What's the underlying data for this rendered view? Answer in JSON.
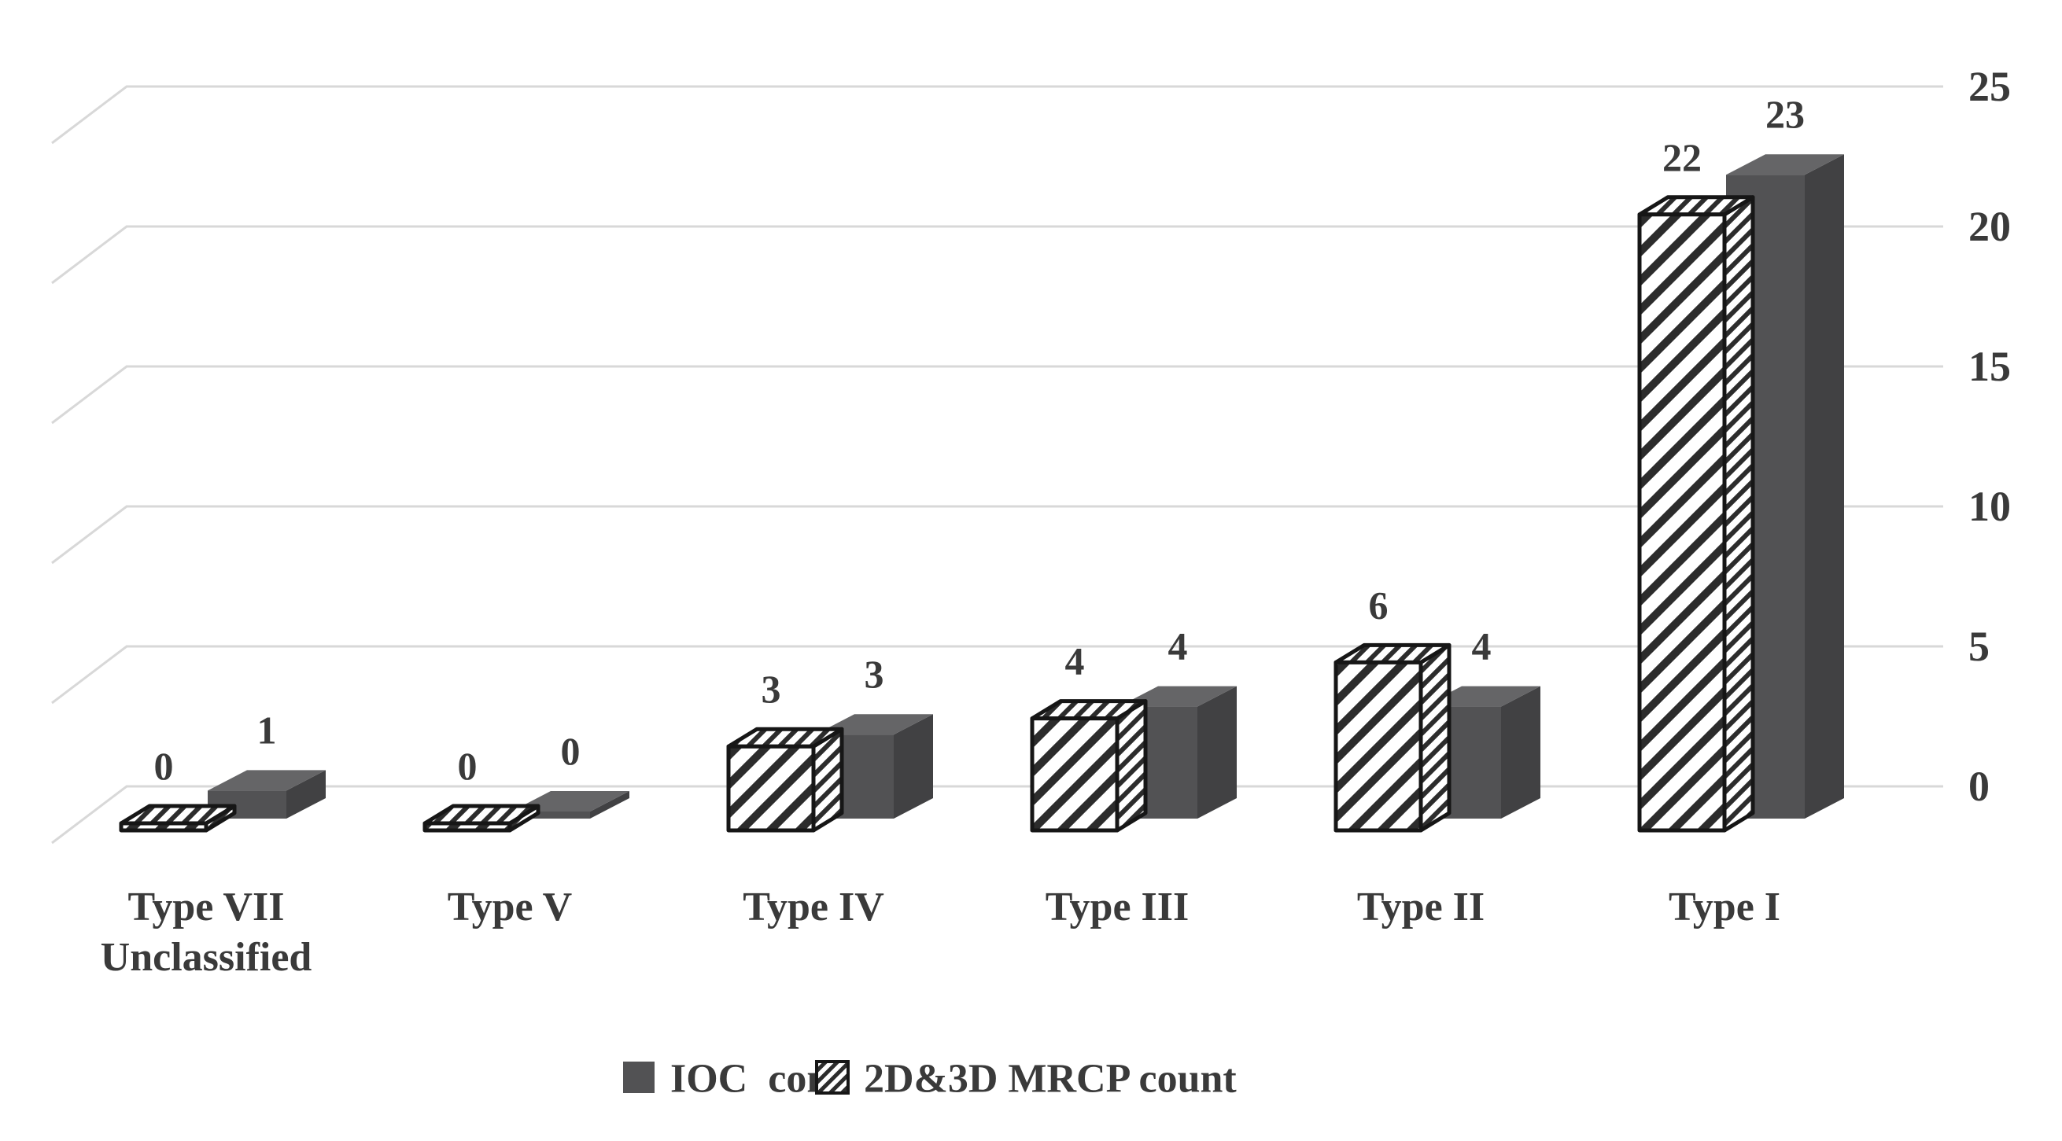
{
  "chart_data": {
    "type": "bar",
    "style": "3d-clustered-column",
    "categories": [
      "Type VII\nUnclassified",
      "Type V",
      "Type IV",
      "Type III",
      "Type II",
      "Type I"
    ],
    "series": [
      {
        "name": "IOC  cont",
        "pattern": "solid",
        "color": "#525254",
        "values": [
          1,
          0,
          3,
          4,
          4,
          23
        ]
      },
      {
        "name": "2D&3D MRCP count",
        "pattern": "diagonal-hatch",
        "color": "#ffffff",
        "hatch_color": "#2c2c2c",
        "values": [
          0,
          0,
          3,
          4,
          6,
          22
        ]
      }
    ],
    "data_labels_shown": true,
    "y_ticks": [
      0,
      5,
      10,
      15,
      20,
      25
    ],
    "ylim": [
      0,
      25
    ],
    "y_axis_side": "right",
    "grid": true,
    "grid_color": "#d8d8d8",
    "legend_position": "bottom",
    "xlabel": "",
    "ylabel": ""
  }
}
